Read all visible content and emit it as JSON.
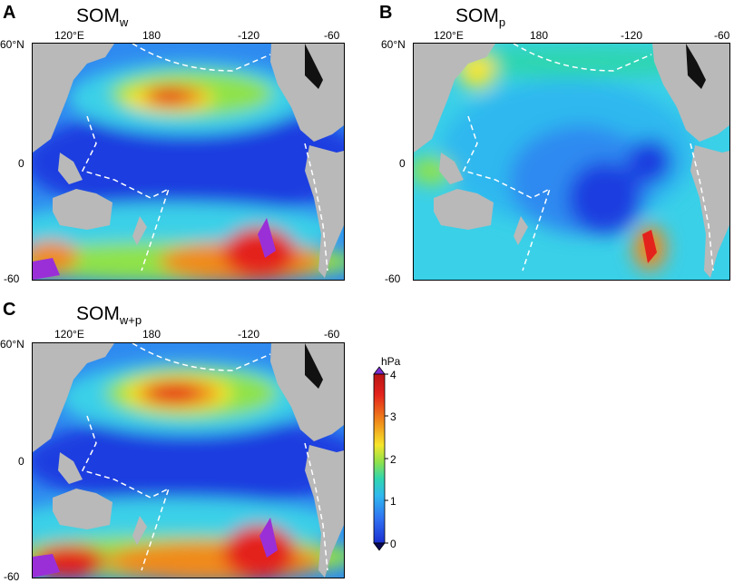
{
  "panels": [
    {
      "letter": "A",
      "title": "SOM",
      "sub": "w"
    },
    {
      "letter": "B",
      "title": "SOM",
      "sub": "p"
    },
    {
      "letter": "C",
      "title": "SOM",
      "sub": "w+p"
    }
  ],
  "lon_ticks": [
    "120°E",
    "180",
    "-120",
    "-60"
  ],
  "lat_ticks": [
    "60°N",
    "0",
    "-60"
  ],
  "colorbar": {
    "unit": "hPa",
    "ticks": [
      "4",
      "3",
      "2",
      "1",
      "0"
    ],
    "colors": [
      "#7b2fd1",
      "#e4221c",
      "#f08a1a",
      "#f6e62a",
      "#8fe24a",
      "#2fd6b0",
      "#2fb8ef",
      "#2f6ff2",
      "#1a2fd1",
      "#0a0a55"
    ]
  },
  "colors": {
    "land": "#b9b9b9",
    "ocean_deep": "#1f3de0",
    "ocean_mid": "#2f8af0",
    "ocean_light": "#3ad0e8",
    "high": "#e4221c",
    "peak": "#9a2fd8"
  }
}
